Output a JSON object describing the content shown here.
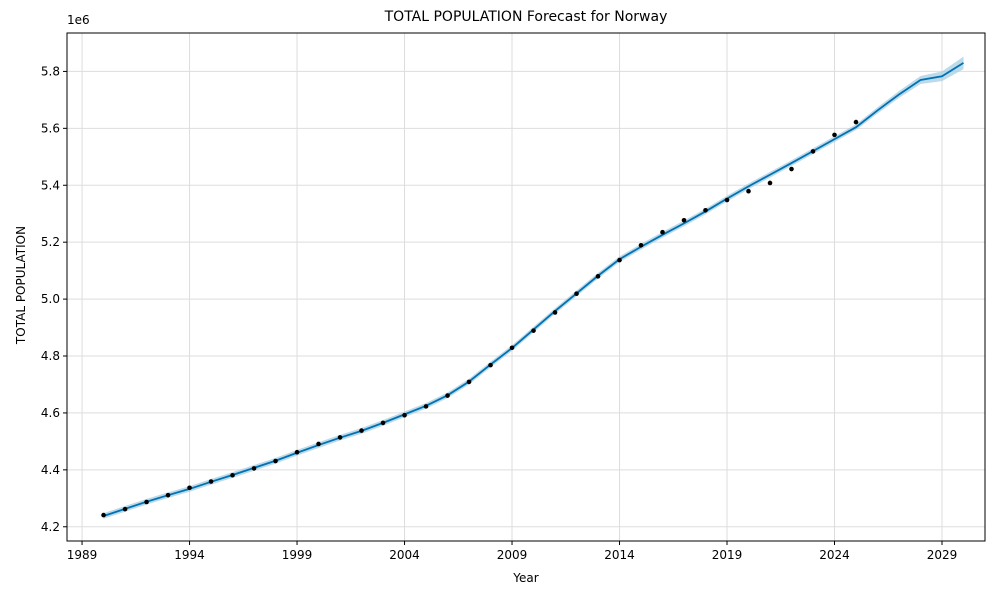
{
  "chart_data": {
    "type": "line",
    "title": "TOTAL POPULATION Forecast for Norway",
    "xlabel": "Year",
    "ylabel": "TOTAL POPULATION",
    "y_offset_label": "1e6",
    "xlim": [
      1988.3,
      2031.0
    ],
    "ylim": [
      4.15,
      5.935
    ],
    "grid": true,
    "x_ticks": [
      1989,
      1994,
      1999,
      2004,
      2009,
      2014,
      2019,
      2024,
      2029
    ],
    "x_tick_labels": [
      "1989",
      "1994",
      "1999",
      "2004",
      "2009",
      "2014",
      "2019",
      "2024",
      "2029"
    ],
    "y_ticks": [
      4.2,
      4.4,
      4.6,
      4.8,
      5.0,
      5.2,
      5.4,
      5.6,
      5.8
    ],
    "y_tick_labels": [
      "4.2",
      "4.4",
      "4.6",
      "4.8",
      "5.0",
      "5.2",
      "5.4",
      "5.6",
      "5.8"
    ],
    "colors": {
      "forecast_line": "#0072B2",
      "uncertainty_band": "#A6CEE3",
      "observed_points": "#000000",
      "grid": "#dddddd"
    },
    "observed": {
      "x": [
        1990,
        1991,
        1992,
        1993,
        1994,
        1995,
        1996,
        1997,
        1998,
        1999,
        2000,
        2001,
        2002,
        2003,
        2004,
        2005,
        2006,
        2007,
        2008,
        2009,
        2010,
        2011,
        2012,
        2013,
        2014,
        2015,
        2016,
        2017,
        2018,
        2019,
        2020,
        2021,
        2022,
        2023,
        2024,
        2025
      ],
      "y": [
        4.241,
        4.262,
        4.287,
        4.311,
        4.337,
        4.359,
        4.381,
        4.405,
        4.431,
        4.462,
        4.491,
        4.514,
        4.538,
        4.565,
        4.592,
        4.623,
        4.661,
        4.709,
        4.768,
        4.829,
        4.889,
        4.953,
        5.019,
        5.08,
        5.137,
        5.189,
        5.235,
        5.277,
        5.312,
        5.348,
        5.379,
        5.408,
        5.457,
        5.519,
        5.577,
        5.622
      ]
    },
    "forecast": {
      "x": [
        1990,
        1991,
        1992,
        1993,
        1994,
        1995,
        1996,
        1997,
        1998,
        1999,
        2000,
        2001,
        2002,
        2003,
        2004,
        2005,
        2006,
        2007,
        2008,
        2009,
        2010,
        2011,
        2012,
        2013,
        2014,
        2015,
        2016,
        2017,
        2018,
        2019,
        2020,
        2021,
        2022,
        2023,
        2024,
        2025,
        2026,
        2027,
        2028,
        2029,
        2030
      ],
      "yhat": [
        4.238,
        4.263,
        4.288,
        4.311,
        4.333,
        4.358,
        4.382,
        4.407,
        4.432,
        4.46,
        4.487,
        4.513,
        4.537,
        4.565,
        4.595,
        4.625,
        4.662,
        4.71,
        4.77,
        4.828,
        4.893,
        4.958,
        5.02,
        5.082,
        5.14,
        5.184,
        5.226,
        5.266,
        5.308,
        5.353,
        5.396,
        5.437,
        5.478,
        5.52,
        5.562,
        5.604,
        5.663,
        5.719,
        5.77,
        5.783,
        5.83
      ],
      "band_halfwidth": [
        0.01,
        0.01,
        0.01,
        0.01,
        0.01,
        0.01,
        0.01,
        0.01,
        0.01,
        0.01,
        0.01,
        0.01,
        0.01,
        0.01,
        0.01,
        0.01,
        0.01,
        0.01,
        0.01,
        0.01,
        0.01,
        0.01,
        0.01,
        0.01,
        0.01,
        0.01,
        0.01,
        0.01,
        0.01,
        0.01,
        0.01,
        0.01,
        0.01,
        0.01,
        0.01,
        0.01,
        0.011,
        0.012,
        0.014,
        0.017,
        0.022
      ]
    }
  }
}
